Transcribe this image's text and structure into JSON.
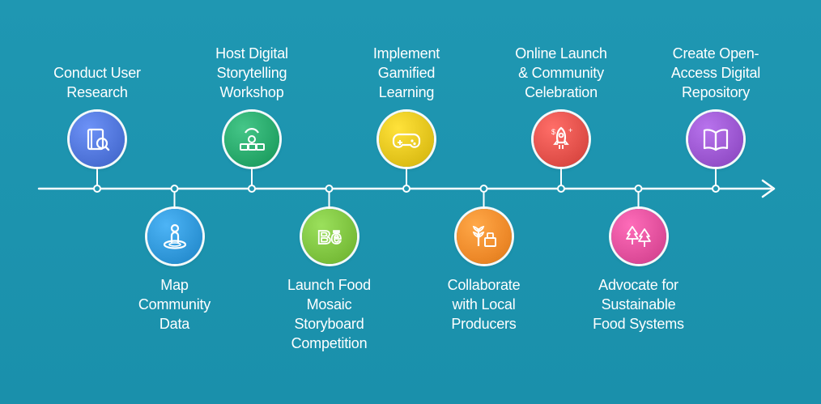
{
  "timeline": {
    "steps": [
      {
        "label": "Conduct User\nResearch",
        "position": "top",
        "color": "#4f74d9",
        "icon": "book-search-icon"
      },
      {
        "label": "Map\nCommunity\nData",
        "position": "bottom",
        "color": "#2f96d8",
        "icon": "location-person-icon"
      },
      {
        "label": "Host Digital\nStorytelling\nWorkshop",
        "position": "top",
        "color": "#27a86a",
        "icon": "workshop-icon"
      },
      {
        "label": "Launch Food\nMosaic\nStoryboard\nCompetition",
        "position": "bottom",
        "color": "#7dc23e",
        "icon": "behance-icon"
      },
      {
        "label": "Implement\nGamified\nLearning",
        "position": "top",
        "color": "#e3c41c",
        "icon": "gamepad-icon"
      },
      {
        "label": "Collaborate\nwith Local\nProducers",
        "position": "bottom",
        "color": "#ee8a2a",
        "icon": "wheat-crate-icon"
      },
      {
        "label": "Online Launch\n& Community\nCelebration",
        "position": "top",
        "color": "#e2504a",
        "icon": "rocket-icon"
      },
      {
        "label": "Advocate for\nSustainable\nFood Systems",
        "position": "bottom",
        "color": "#e04e9b",
        "icon": "trees-icon"
      },
      {
        "label": "Create Open-\nAccess Digital\nRepository",
        "position": "top",
        "color": "#9a55cf",
        "icon": "open-book-icon"
      }
    ]
  }
}
